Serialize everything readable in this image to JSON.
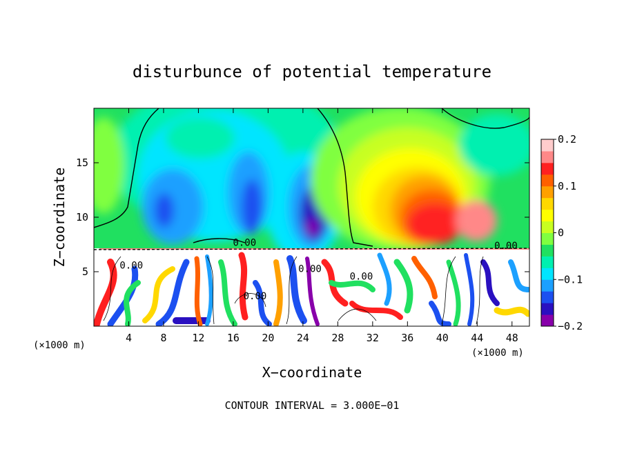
{
  "chart_data": {
    "type": "heatmap",
    "title": "disturbunce of potential temperature",
    "xlabel": "X−coordinate",
    "ylabel": "Z−coordinate",
    "x_unit_left": "(×1000 m)",
    "x_unit_right": "(×1000 m)",
    "xlim": [
      0,
      50
    ],
    "ylim": [
      0,
      20
    ],
    "x_ticks": [
      4,
      8,
      12,
      16,
      20,
      24,
      28,
      32,
      36,
      40,
      44,
      48
    ],
    "x_tick_labels": [
      "4",
      "8",
      "12",
      "16",
      "20",
      "24",
      "28",
      "32",
      "36",
      "40",
      "44",
      "48"
    ],
    "y_ticks": [
      5,
      10,
      15
    ],
    "y_tick_labels": [
      "5",
      "10",
      "15"
    ],
    "colorbar": {
      "range": [
        -0.2,
        0.2
      ],
      "ticks": [
        0.2,
        0.1,
        0,
        -0.1,
        -0.2
      ],
      "tick_labels": [
        "0.2",
        "0.1",
        "0",
        "−0.1",
        "−0.2"
      ],
      "colors": [
        "#8800aa",
        "#2a10c0",
        "#1c50f0",
        "#1ca0ff",
        "#00e5ff",
        "#00f0b0",
        "#20e060",
        "#80ff40",
        "#c8ff20",
        "#ffff00",
        "#ffd800",
        "#ffa000",
        "#ff6000",
        "#ff2020",
        "#ff8888",
        "#ffcccc"
      ]
    },
    "contour_labels": [
      {
        "text": "0.00",
        "x": 17.3,
        "y": 7.7
      },
      {
        "text": "0.00",
        "x": 4.3,
        "y": 5.6
      },
      {
        "text": "0.00",
        "x": 18.5,
        "y": 2.8
      },
      {
        "text": "0.00",
        "x": 24.8,
        "y": 5.3
      },
      {
        "text": "0.00",
        "x": 30.7,
        "y": 4.6
      },
      {
        "text": "0.00",
        "x": 47.3,
        "y": 7.4
      }
    ],
    "contour_interval_note": "CONTOUR INTERVAL = 3.000E−01"
  }
}
